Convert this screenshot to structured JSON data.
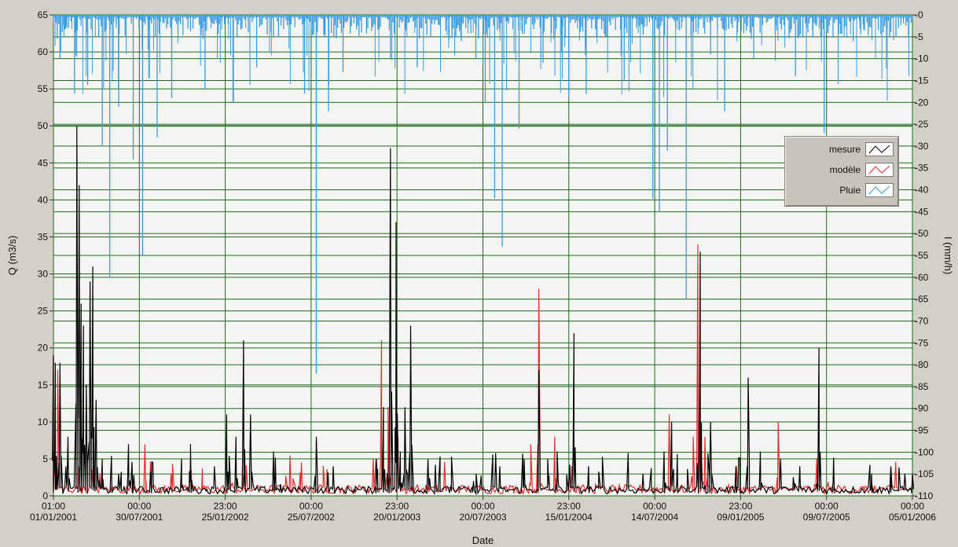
{
  "chart_data": {
    "type": "line",
    "xlabel": "Date",
    "ylabel": "Q (m3/s)",
    "y2label": "I (mm/h)",
    "ylim": [
      0,
      65
    ],
    "y2lim": [
      0,
      110
    ],
    "y2_inverted": true,
    "grid": true,
    "legend_position": "top-right",
    "x_ticks": [
      {
        "time": "01:00",
        "date": "01/01/2001"
      },
      {
        "time": "00:00",
        "date": "30/07/2001"
      },
      {
        "time": "23:00",
        "date": "25/01/2002"
      },
      {
        "time": "00:00",
        "date": "25/07/2002"
      },
      {
        "time": "23:00",
        "date": "20/01/2003"
      },
      {
        "time": "00:00",
        "date": "20/07/2003"
      },
      {
        "time": "23:00",
        "date": "15/01/2004"
      },
      {
        "time": "00:00",
        "date": "14/07/2004"
      },
      {
        "time": "23:00",
        "date": "09/01/2005"
      },
      {
        "time": "00:00",
        "date": "09/07/2005"
      },
      {
        "time": "00:00",
        "date": "05/01/2006"
      }
    ],
    "y_ticks": [
      0,
      5,
      10,
      15,
      20,
      25,
      30,
      35,
      40,
      45,
      50,
      55,
      60,
      65
    ],
    "y2_ticks": [
      0,
      5,
      10,
      15,
      20,
      25,
      30,
      35,
      40,
      45,
      50,
      55,
      60,
      65,
      70,
      75,
      80,
      85,
      90,
      95,
      100,
      105,
      110
    ],
    "series": [
      {
        "name": "mesure",
        "axis": "left",
        "color": "#000000",
        "peaks": [
          [
            "2001-01-01",
            19
          ],
          [
            "2001-01-05",
            18
          ],
          [
            "2001-01-15",
            18
          ],
          [
            "2001-02-01",
            8
          ],
          [
            "2001-02-20",
            50
          ],
          [
            "2001-02-25",
            42
          ],
          [
            "2001-03-01",
            26
          ],
          [
            "2001-03-06",
            23
          ],
          [
            "2001-03-12",
            15
          ],
          [
            "2001-03-20",
            29
          ],
          [
            "2001-03-26",
            31
          ],
          [
            "2001-04-02",
            13
          ],
          [
            "2001-04-15",
            5
          ],
          [
            "2001-05-20",
            3
          ],
          [
            "2001-06-10",
            7
          ],
          [
            "2001-10-01",
            5
          ],
          [
            "2001-10-20",
            7
          ],
          [
            "2001-12-10",
            4
          ],
          [
            "2002-01-05",
            11
          ],
          [
            "2002-01-25",
            8
          ],
          [
            "2002-02-10",
            21
          ],
          [
            "2002-02-25",
            11
          ],
          [
            "2002-04-15",
            6
          ],
          [
            "2002-07-15",
            8
          ],
          [
            "2002-08-20",
            4
          ],
          [
            "2002-11-20",
            5
          ],
          [
            "2002-12-05",
            12
          ],
          [
            "2002-12-20",
            47
          ],
          [
            "2003-01-01",
            37
          ],
          [
            "2003-01-10",
            6
          ],
          [
            "2003-01-20",
            12
          ],
          [
            "2003-02-01",
            23
          ],
          [
            "2003-03-10",
            5
          ],
          [
            "2003-06-15",
            2
          ],
          [
            "2003-08-10",
            4
          ],
          [
            "2003-10-01",
            5
          ],
          [
            "2003-11-01",
            17
          ],
          [
            "2003-11-20",
            5
          ],
          [
            "2003-12-10",
            6
          ],
          [
            "2004-01-15",
            22
          ],
          [
            "2004-02-15",
            4
          ],
          [
            "2004-06-10",
            3
          ],
          [
            "2004-07-25",
            6
          ],
          [
            "2004-08-10",
            10
          ],
          [
            "2004-10-10",
            33
          ],
          [
            "2004-11-01",
            10
          ],
          [
            "2004-12-25",
            4
          ],
          [
            "2005-01-20",
            16
          ],
          [
            "2005-02-15",
            6
          ],
          [
            "2005-05-10",
            4
          ],
          [
            "2005-06-20",
            20
          ],
          [
            "2005-07-20",
            2
          ],
          [
            "2005-10-10",
            3
          ],
          [
            "2005-11-20",
            4
          ],
          [
            "2005-12-20",
            3
          ],
          [
            "2006-01-05",
            3
          ]
        ]
      },
      {
        "name": "modèle",
        "axis": "left",
        "color": "#e03030",
        "peaks": [
          [
            "2001-01-01",
            19
          ],
          [
            "2001-01-10",
            17
          ],
          [
            "2001-02-25",
            4
          ],
          [
            "2001-04-10",
            3
          ],
          [
            "2001-07-15",
            7
          ],
          [
            "2001-10-20",
            5
          ],
          [
            "2002-02-10",
            3
          ],
          [
            "2002-12-01",
            21
          ],
          [
            "2002-12-15",
            12
          ],
          [
            "2003-01-05",
            8
          ],
          [
            "2003-10-15",
            7
          ],
          [
            "2003-11-01",
            28
          ],
          [
            "2003-12-05",
            8
          ],
          [
            "2004-01-10",
            4
          ],
          [
            "2004-08-05",
            11
          ],
          [
            "2004-09-25",
            8
          ],
          [
            "2004-10-05",
            34
          ],
          [
            "2004-10-20",
            8
          ],
          [
            "2005-03-25",
            10
          ],
          [
            "2005-06-15",
            5
          ]
        ]
      },
      {
        "name": "Pluie",
        "axis": "right",
        "color": "#3a9de0",
        "peaks": [
          [
            "2001-01-15",
            10
          ],
          [
            "2001-02-15",
            18
          ],
          [
            "2001-03-15",
            16
          ],
          [
            "2001-04-15",
            30
          ],
          [
            "2001-05-01",
            60
          ],
          [
            "2001-05-20",
            21
          ],
          [
            "2001-06-20",
            33
          ],
          [
            "2001-07-10",
            55
          ],
          [
            "2001-08-10",
            28
          ],
          [
            "2001-09-10",
            19
          ],
          [
            "2001-11-20",
            17
          ],
          [
            "2002-03-10",
            12
          ],
          [
            "2002-06-20",
            18
          ],
          [
            "2002-07-15",
            82
          ],
          [
            "2002-08-10",
            22
          ],
          [
            "2002-09-10",
            13
          ],
          [
            "2002-12-20",
            10
          ],
          [
            "2003-02-15",
            12
          ],
          [
            "2003-05-20",
            6
          ],
          [
            "2003-06-20",
            10
          ],
          [
            "2003-07-10",
            20
          ],
          [
            "2003-07-30",
            42
          ],
          [
            "2003-08-15",
            53
          ],
          [
            "2003-09-20",
            26
          ],
          [
            "2003-11-10",
            11
          ],
          [
            "2004-02-10",
            18
          ],
          [
            "2004-05-01",
            15
          ],
          [
            "2004-07-01",
            42
          ],
          [
            "2004-07-15",
            45
          ],
          [
            "2004-08-01",
            31
          ],
          [
            "2004-09-10",
            65
          ],
          [
            "2004-11-01",
            9
          ],
          [
            "2004-12-01",
            22
          ],
          [
            "2005-02-01",
            10
          ],
          [
            "2005-05-01",
            14
          ],
          [
            "2005-07-01",
            27
          ],
          [
            "2005-09-01",
            6
          ],
          [
            "2005-12-01",
            5
          ]
        ]
      }
    ]
  }
}
